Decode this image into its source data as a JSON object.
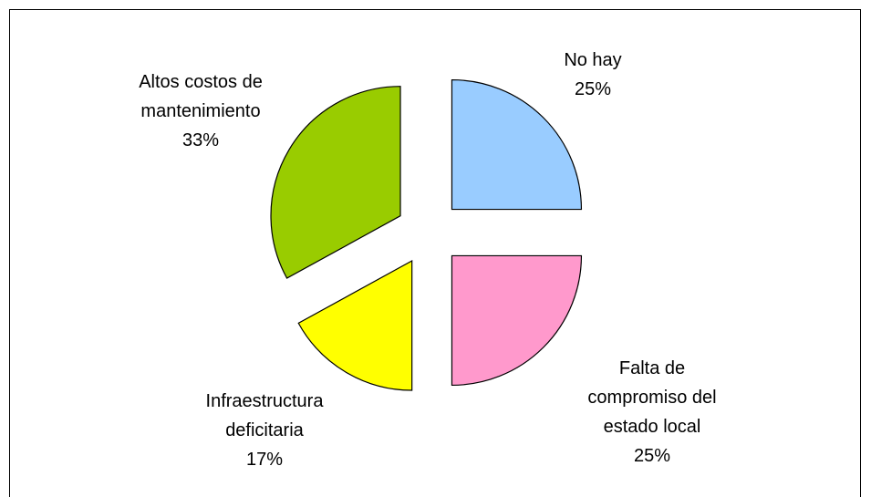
{
  "chart_data": {
    "type": "pie",
    "categories": [
      "No hay",
      "Falta de\ncompromiso del\nestado local",
      "Infraestructura\ndeficitaria",
      "Altos costos de\nmantenimiento"
    ],
    "values": [
      25,
      25,
      17,
      33
    ],
    "value_labels": [
      "25%",
      "25%",
      "17%",
      "33%"
    ],
    "colors": [
      "#99ccff",
      "#ff99cc",
      "#ffff00",
      "#99cc00"
    ]
  }
}
